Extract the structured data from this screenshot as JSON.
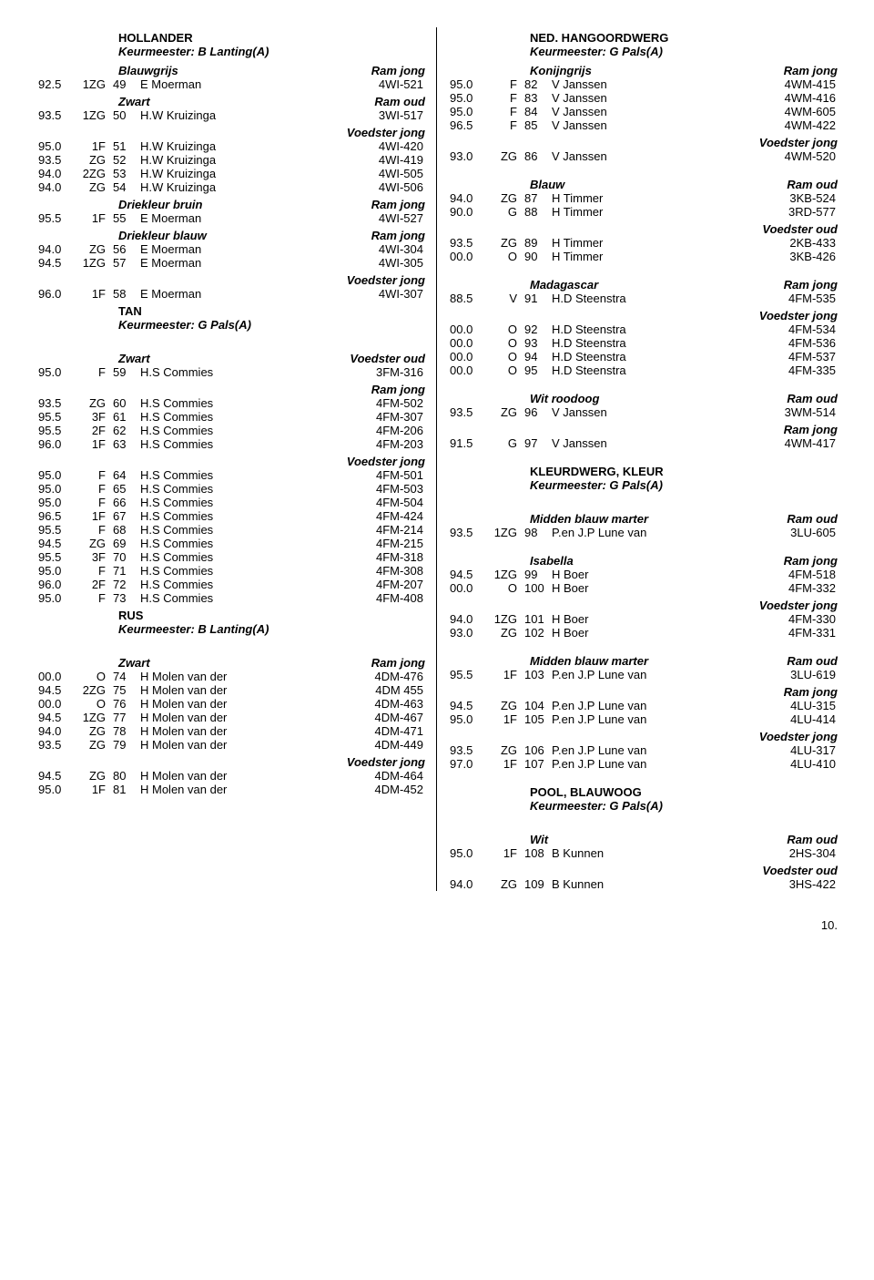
{
  "footer_page": "10.",
  "left": {
    "blocks": [
      {
        "type": "breed",
        "text": "HOLLANDER",
        "indent": 90
      },
      {
        "type": "judge",
        "text": "Keurmeester: B Lanting(A)",
        "indent": 90
      },
      {
        "type": "subhead",
        "left": "Blauwgrijs",
        "right": "Ram jong"
      },
      {
        "type": "rows",
        "rows": [
          [
            "92.5",
            "1ZG",
            "49",
            "E Moerman",
            "4WI-521"
          ]
        ]
      },
      {
        "type": "subhead",
        "left": "Zwart",
        "right": "Ram oud"
      },
      {
        "type": "rows",
        "rows": [
          [
            "93.5",
            "1ZG",
            "50",
            "H.W Kruizinga",
            "3WI-517"
          ]
        ]
      },
      {
        "type": "subhead",
        "left": "",
        "right": "Voedster jong"
      },
      {
        "type": "rows",
        "rows": [
          [
            "95.0",
            "1F",
            "51",
            "H.W Kruizinga",
            "4WI-420"
          ],
          [
            "93.5",
            "ZG",
            "52",
            "H.W Kruizinga",
            "4WI-419"
          ],
          [
            "94.0",
            "2ZG",
            "53",
            "H.W Kruizinga",
            "4WI-505"
          ],
          [
            "94.0",
            "ZG",
            "54",
            "H.W Kruizinga",
            "4WI-506"
          ]
        ]
      },
      {
        "type": "subhead",
        "left": "Driekleur bruin",
        "right": "Ram jong"
      },
      {
        "type": "rows",
        "rows": [
          [
            "95.5",
            "1F",
            "55",
            "E Moerman",
            "4WI-527"
          ]
        ]
      },
      {
        "type": "subhead",
        "left": "Driekleur blauw",
        "right": "Ram jong"
      },
      {
        "type": "rows",
        "rows": [
          [
            "94.0",
            "ZG",
            "56",
            "E Moerman",
            "4WI-304"
          ],
          [
            "94.5",
            "1ZG",
            "57",
            "E Moerman",
            "4WI-305"
          ]
        ]
      },
      {
        "type": "subhead",
        "left": "",
        "right": "Voedster jong"
      },
      {
        "type": "rows",
        "rows": [
          [
            "96.0",
            "1F",
            "58",
            "E Moerman",
            "4WI-307"
          ]
        ]
      },
      {
        "type": "breed",
        "text": "TAN",
        "indent": 90
      },
      {
        "type": "judge",
        "text": "Keurmeester: G Pals(A)",
        "indent": 90
      },
      {
        "type": "spacer"
      },
      {
        "type": "subhead",
        "left": "Zwart",
        "right": "Voedster oud"
      },
      {
        "type": "rows",
        "rows": [
          [
            "95.0",
            "F",
            "59",
            "H.S Commies",
            "3FM-316"
          ]
        ]
      },
      {
        "type": "subhead",
        "left": "",
        "right": "Ram jong"
      },
      {
        "type": "rows",
        "rows": [
          [
            "93.5",
            "ZG",
            "60",
            "H.S Commies",
            "4FM-502"
          ],
          [
            "95.5",
            "3F",
            "61",
            "H.S Commies",
            "4FM-307"
          ],
          [
            "95.5",
            "2F",
            "62",
            "H.S Commies",
            "4FM-206"
          ],
          [
            "96.0",
            "1F",
            "63",
            "H.S Commies",
            "4FM-203"
          ]
        ]
      },
      {
        "type": "subhead",
        "left": "",
        "right": "Voedster jong"
      },
      {
        "type": "rows",
        "rows": [
          [
            "95.0",
            "F",
            "64",
            "H.S Commies",
            "4FM-501"
          ],
          [
            "95.0",
            "F",
            "65",
            "H.S Commies",
            "4FM-503"
          ],
          [
            "95.0",
            "F",
            "66",
            "H.S Commies",
            "4FM-504"
          ],
          [
            "96.5",
            "1F",
            "67",
            "H.S Commies",
            "4FM-424"
          ],
          [
            "95.5",
            "F",
            "68",
            "H.S Commies",
            "4FM-214"
          ],
          [
            "94.5",
            "ZG",
            "69",
            "H.S Commies",
            "4FM-215"
          ],
          [
            "95.5",
            "3F",
            "70",
            "H.S Commies",
            "4FM-318"
          ],
          [
            "95.0",
            "F",
            "71",
            "H.S Commies",
            "4FM-308"
          ],
          [
            "96.0",
            "2F",
            "72",
            "H.S Commies",
            "4FM-207"
          ],
          [
            "95.0",
            "F",
            "73",
            "H.S Commies",
            "4FM-408"
          ]
        ]
      },
      {
        "type": "breed",
        "text": "RUS",
        "indent": 90
      },
      {
        "type": "judge",
        "text": "Keurmeester: B Lanting(A)",
        "indent": 90
      },
      {
        "type": "spacer"
      },
      {
        "type": "subhead",
        "left": "Zwart",
        "right": "Ram jong"
      },
      {
        "type": "rows",
        "rows": [
          [
            "00.0",
            "O",
            "74",
            "H Molen van der",
            "4DM-476"
          ],
          [
            "94.5",
            "2ZG",
            "75",
            "H Molen van der",
            "4DM 455"
          ],
          [
            "00.0",
            "O",
            "76",
            "H Molen van der",
            "4DM-463"
          ],
          [
            "94.5",
            "1ZG",
            "77",
            "H Molen van der",
            "4DM-467"
          ],
          [
            "94.0",
            "ZG",
            "78",
            "H Molen van der",
            "4DM-471"
          ],
          [
            "93.5",
            "ZG",
            "79",
            "H Molen van der",
            "4DM-449"
          ]
        ]
      },
      {
        "type": "subhead",
        "left": "",
        "right": "Voedster jong"
      },
      {
        "type": "rows",
        "rows": [
          [
            "94.5",
            "ZG",
            "80",
            "H Molen van der",
            "4DM-464"
          ],
          [
            "95.0",
            "1F",
            "81",
            "H Molen van der",
            "4DM-452"
          ]
        ]
      }
    ]
  },
  "right": {
    "blocks": [
      {
        "type": "breed",
        "text": "NED. HANGOORDWERG",
        "indent": 90
      },
      {
        "type": "judge",
        "text": "Keurmeester: G Pals(A)",
        "indent": 90
      },
      {
        "type": "subhead",
        "left": "Konijngrijs",
        "right": "Ram jong"
      },
      {
        "type": "rows",
        "rows": [
          [
            "95.0",
            "F",
            "82",
            "V Janssen",
            "4WM-415"
          ],
          [
            "95.0",
            "F",
            "83",
            "V Janssen",
            "4WM-416"
          ],
          [
            "95.0",
            "F",
            "84",
            "V Janssen",
            "4WM-605"
          ],
          [
            "96.5",
            "F",
            "85",
            "V Janssen",
            "4WM-422"
          ]
        ]
      },
      {
        "type": "subhead",
        "left": "",
        "right": "Voedster jong"
      },
      {
        "type": "rows",
        "rows": [
          [
            "93.0",
            "ZG",
            "86",
            "V Janssen",
            "4WM-520"
          ]
        ]
      },
      {
        "type": "spacer"
      },
      {
        "type": "subhead",
        "left": "Blauw",
        "right": "Ram oud"
      },
      {
        "type": "rows",
        "rows": [
          [
            "94.0",
            "ZG",
            "87",
            "H Timmer",
            "3KB-524"
          ],
          [
            "90.0",
            "G",
            "88",
            "H Timmer",
            "3RD-577"
          ]
        ]
      },
      {
        "type": "subhead",
        "left": "",
        "right": "Voedster oud"
      },
      {
        "type": "rows",
        "rows": [
          [
            "93.5",
            "ZG",
            "89",
            "H Timmer",
            "2KB-433"
          ],
          [
            "00.0",
            "O",
            "90",
            "H Timmer",
            "3KB-426"
          ]
        ]
      },
      {
        "type": "spacer"
      },
      {
        "type": "subhead",
        "left": "Madagascar",
        "right": "Ram jong"
      },
      {
        "type": "rows",
        "rows": [
          [
            "88.5",
            "V",
            "91",
            "H.D Steenstra",
            "4FM-535"
          ]
        ]
      },
      {
        "type": "subhead",
        "left": "",
        "right": "Voedster jong"
      },
      {
        "type": "rows",
        "rows": [
          [
            "00.0",
            "O",
            "92",
            "H.D Steenstra",
            "4FM-534"
          ],
          [
            "00.0",
            "O",
            "93",
            "H.D Steenstra",
            "4FM-536"
          ],
          [
            "00.0",
            "O",
            "94",
            "H.D Steenstra",
            "4FM-537"
          ],
          [
            "00.0",
            "O",
            "95",
            "H.D Steenstra",
            "4FM-335"
          ]
        ]
      },
      {
        "type": "spacer"
      },
      {
        "type": "subhead",
        "left": "Wit roodoog",
        "right": "Ram oud"
      },
      {
        "type": "rows",
        "rows": [
          [
            "93.5",
            "ZG",
            "96",
            "V Janssen",
            "3WM-514"
          ]
        ]
      },
      {
        "type": "subhead",
        "left": "",
        "right": "Ram jong"
      },
      {
        "type": "rows",
        "rows": [
          [
            "91.5",
            "G",
            "97",
            "V Janssen",
            "4WM-417"
          ]
        ]
      },
      {
        "type": "spacer"
      },
      {
        "type": "breed",
        "text": "KLEURDWERG, KLEUR",
        "indent": 90
      },
      {
        "type": "judge",
        "text": "Keurmeester: G Pals(A)",
        "indent": 90
      },
      {
        "type": "spacer"
      },
      {
        "type": "subhead",
        "left": "Midden blauw marter",
        "right": "Ram oud"
      },
      {
        "type": "rows",
        "rows": [
          [
            "93.5",
            "1ZG",
            "98",
            "P.en J.P Lune van",
            "3LU-605"
          ]
        ]
      },
      {
        "type": "spacer"
      },
      {
        "type": "subhead",
        "left": "Isabella",
        "right": "Ram jong"
      },
      {
        "type": "rows",
        "rows": [
          [
            "94.5",
            "1ZG",
            "99",
            "H Boer",
            "4FM-518"
          ],
          [
            "00.0",
            "O",
            "100",
            "H Boer",
            "4FM-332"
          ]
        ]
      },
      {
        "type": "subhead",
        "left": "",
        "right": "Voedster jong"
      },
      {
        "type": "rows",
        "rows": [
          [
            "94.0",
            "1ZG",
            "101",
            "H Boer",
            "4FM-330"
          ],
          [
            "93.0",
            "ZG",
            "102",
            "H Boer",
            "4FM-331"
          ]
        ]
      },
      {
        "type": "spacer"
      },
      {
        "type": "subhead",
        "left": "Midden blauw marter",
        "right": "Ram oud"
      },
      {
        "type": "rows",
        "rows": [
          [
            "95.5",
            "1F",
            "103",
            "P.en J.P Lune van",
            "3LU-619"
          ]
        ]
      },
      {
        "type": "subhead",
        "left": "",
        "right": "Ram jong"
      },
      {
        "type": "rows",
        "rows": [
          [
            "94.5",
            "ZG",
            "104",
            "P.en J.P Lune van",
            "4LU-315"
          ],
          [
            "95.0",
            "1F",
            "105",
            "P.en J.P Lune van",
            "4LU-414"
          ]
        ]
      },
      {
        "type": "subhead",
        "left": "",
        "right": "Voedster jong"
      },
      {
        "type": "rows",
        "rows": [
          [
            "93.5",
            "ZG",
            "106",
            "P.en J.P Lune van",
            "4LU-317"
          ],
          [
            "97.0",
            "1F",
            "107",
            "P.en J.P Lune van",
            "4LU-410"
          ]
        ]
      },
      {
        "type": "spacer"
      },
      {
        "type": "breed",
        "text": "POOL, BLAUWOOG",
        "indent": 90
      },
      {
        "type": "judge",
        "text": "Keurmeester: G Pals(A)",
        "indent": 90
      },
      {
        "type": "spacer"
      },
      {
        "type": "subhead",
        "left": "Wit",
        "right": "Ram oud"
      },
      {
        "type": "rows",
        "rows": [
          [
            "95.0",
            "1F",
            "108",
            "B Kunnen",
            "2HS-304"
          ]
        ]
      },
      {
        "type": "subhead",
        "left": "",
        "right": "Voedster oud"
      },
      {
        "type": "rows",
        "rows": [
          [
            "94.0",
            "ZG",
            "109",
            "B Kunnen",
            "3HS-422"
          ]
        ]
      }
    ]
  }
}
